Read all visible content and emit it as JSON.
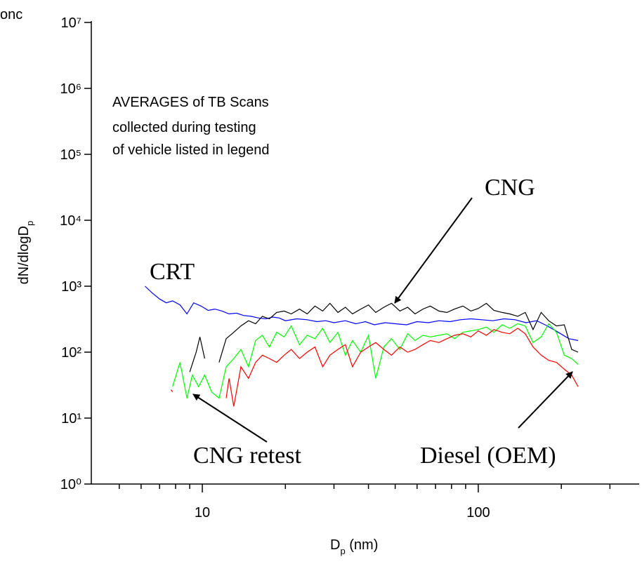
{
  "chart_data": {
    "type": "line",
    "x_label": [
      "D",
      "p",
      " (nm)"
    ],
    "y_label": [
      "dN/dlogD",
      "p"
    ],
    "annotations": [
      "onc",
      "AVERAGES of TB Scans",
      "collected during testing",
      "of vehicle listed in legend",
      "CNG",
      "CRT",
      "CNG retest",
      "Diesel (OEM)"
    ],
    "log_x": true,
    "log_y": true,
    "xlim": [
      3.96,
      383
    ],
    "ylim": [
      1,
      10000000
    ],
    "xticks": [
      10,
      100
    ],
    "xminorticks": [
      5,
      6,
      7,
      8,
      9,
      20,
      30,
      40,
      50,
      60,
      70,
      80,
      90,
      200,
      300
    ],
    "yticks": [
      {
        "value": 1,
        "label": "10⁰"
      },
      {
        "value": 10,
        "label": "10¹"
      },
      {
        "value": 100,
        "label": "10²"
      },
      {
        "value": 1000,
        "label": "10³"
      },
      {
        "value": 10000,
        "label": "10⁴"
      },
      {
        "value": 100000,
        "label": "10⁵"
      },
      {
        "value": 1000000,
        "label": "10⁶"
      },
      {
        "value": 10000000,
        "label": "10⁷"
      }
    ],
    "series": [
      {
        "color": "#0000ff",
        "x": [
          6.2,
          6.6,
          7,
          7.4,
          7.8,
          8.3,
          8.8,
          9.3,
          9.9,
          10.5,
          11.1,
          11.8,
          12.5,
          13.3,
          14.1,
          15,
          16,
          17,
          18,
          19,
          20,
          22,
          24,
          26,
          28,
          30,
          33,
          36,
          39,
          42,
          46,
          50,
          55,
          60,
          66,
          72,
          79,
          86,
          94,
          103,
          113,
          124,
          136,
          149,
          163,
          178,
          195,
          213,
          230
        ],
        "values": [
          1000,
          780,
          640,
          560,
          600,
          520,
          380,
          560,
          500,
          430,
          450,
          420,
          380,
          390,
          360,
          350,
          330,
          320,
          340,
          330,
          300,
          320,
          310,
          290,
          300,
          280,
          300,
          270,
          290,
          260,
          280,
          270,
          260,
          290,
          280,
          300,
          290,
          310,
          320,
          310,
          300,
          320,
          310,
          280,
          300,
          250,
          200,
          160,
          150
        ]
      },
      {
        "color": "#000000",
        "x": [
          9.0,
          9.5,
          9.8,
          10.2,
          10.8,
          11.5,
          12.2,
          13,
          13.8,
          14.7,
          15.6,
          16.5,
          17.5,
          18.6,
          19.8,
          21,
          22.5,
          24,
          25.6,
          27.3,
          29,
          31,
          33,
          35,
          37.5,
          40,
          42.5,
          45.5,
          48.5,
          52,
          55.5,
          59,
          63,
          67,
          72,
          77,
          82,
          88,
          94,
          100,
          107,
          114,
          122,
          130,
          139,
          148,
          158,
          169,
          180,
          192,
          205,
          218,
          230
        ],
        "values": [
          50,
          100,
          170,
          80,
          null,
          70,
          160,
          200,
          250,
          300,
          270,
          350,
          320,
          400,
          420,
          380,
          450,
          380,
          500,
          420,
          550,
          400,
          480,
          380,
          450,
          520,
          400,
          480,
          550,
          420,
          480,
          380,
          450,
          500,
          420,
          400,
          450,
          500,
          420,
          460,
          550,
          430,
          400,
          380,
          350,
          400,
          220,
          400,
          300,
          250,
          260,
          110,
          100
        ]
      },
      {
        "color": "#00ff00",
        "x": [
          7.8,
          8.3,
          8.8,
          9.2,
          9.7,
          10.2,
          10.8,
          11.5,
          12.2,
          13,
          13.8,
          14.7,
          15.6,
          16.5,
          17.5,
          18.6,
          19.8,
          21,
          22.5,
          24,
          25.6,
          27.3,
          29,
          31,
          33,
          35,
          37.5,
          40,
          42.5,
          45.5,
          48.5,
          52,
          55.5,
          59,
          63,
          67,
          72,
          77,
          82,
          88,
          94,
          100,
          107,
          114,
          122,
          130,
          139,
          148,
          158,
          169,
          180,
          192,
          205,
          218,
          230
        ],
        "values": [
          30,
          70,
          20,
          45,
          30,
          45,
          25,
          20,
          60,
          80,
          110,
          60,
          150,
          180,
          120,
          200,
          170,
          250,
          130,
          180,
          160,
          230,
          140,
          200,
          90,
          150,
          100,
          180,
          40,
          120,
          160,
          110,
          190,
          150,
          180,
          170,
          180,
          190,
          160,
          200,
          210,
          220,
          240,
          200,
          260,
          230,
          270,
          250,
          140,
          170,
          270,
          200,
          90,
          80,
          65
        ]
      },
      {
        "color": "#ff0000",
        "x": [
          7.7,
          7.8,
          8.3,
          12.2,
          12.5,
          13,
          13.8,
          14.7,
          15.6,
          16.5,
          17.5,
          18.6,
          19.8,
          21,
          22.5,
          24,
          25.6,
          27.3,
          29,
          31,
          33,
          35,
          37.5,
          40,
          42.5,
          45.5,
          48.5,
          52,
          55.5,
          59,
          63,
          67,
          72,
          77,
          82,
          88,
          94,
          100,
          107,
          114,
          122,
          130,
          139,
          148,
          158,
          169,
          180,
          192,
          205,
          218,
          230
        ],
        "values": [
          27,
          25,
          null,
          20,
          40,
          15,
          60,
          40,
          70,
          90,
          80,
          70,
          90,
          110,
          80,
          100,
          120,
          60,
          90,
          110,
          130,
          60,
          100,
          120,
          140,
          110,
          90,
          120,
          100,
          110,
          130,
          150,
          140,
          160,
          180,
          190,
          170,
          210,
          180,
          220,
          200,
          190,
          230,
          190,
          120,
          90,
          75,
          70,
          55,
          45,
          30
        ]
      }
    ]
  }
}
